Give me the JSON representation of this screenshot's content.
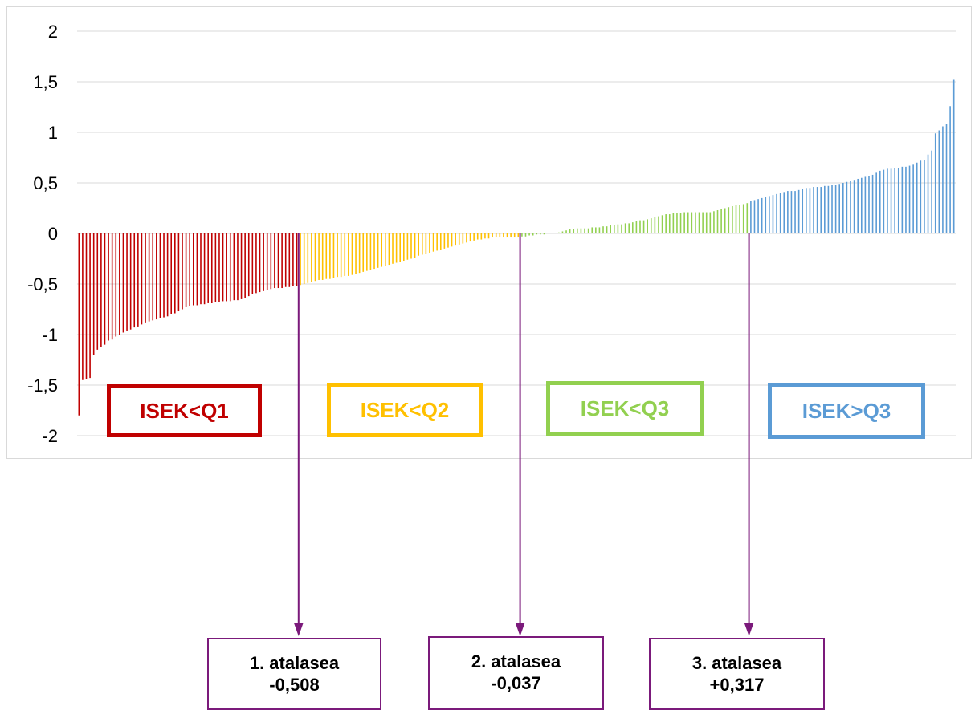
{
  "chart_data": {
    "type": "bar",
    "title": "",
    "xlabel": "",
    "ylabel": "",
    "ylim": [
      -2,
      2
    ],
    "y_ticks": [
      "2",
      "1,5",
      "1",
      "0,5",
      "0",
      "-0,5",
      "-1",
      "-1,5",
      "-2"
    ],
    "grid": "horizontal",
    "legend": "none",
    "series": [
      {
        "group": "ISEK<Q1",
        "color": "#c00000",
        "values": [
          -1.8,
          -1.45,
          -1.44,
          -1.43,
          -1.2,
          -1.15,
          -1.12,
          -1.1,
          -1.06,
          -1.05,
          -1.02,
          -1.0,
          -0.98,
          -0.96,
          -0.95,
          -0.93,
          -0.92,
          -0.9,
          -0.88,
          -0.87,
          -0.86,
          -0.85,
          -0.84,
          -0.83,
          -0.82,
          -0.8,
          -0.79,
          -0.77,
          -0.75,
          -0.73,
          -0.72,
          -0.71,
          -0.71,
          -0.7,
          -0.7,
          -0.69,
          -0.69,
          -0.68,
          -0.68,
          -0.67,
          -0.67,
          -0.67,
          -0.66,
          -0.66,
          -0.65,
          -0.64,
          -0.62,
          -0.6,
          -0.59,
          -0.58,
          -0.57,
          -0.56,
          -0.55,
          -0.54,
          -0.54,
          -0.54,
          -0.53,
          -0.53,
          -0.52,
          -0.52
        ]
      },
      {
        "group": "ISEK<Q2",
        "color": "#ffc000",
        "values": [
          -0.51,
          -0.5,
          -0.49,
          -0.48,
          -0.47,
          -0.46,
          -0.46,
          -0.45,
          -0.45,
          -0.44,
          -0.43,
          -0.43,
          -0.42,
          -0.42,
          -0.41,
          -0.4,
          -0.39,
          -0.38,
          -0.37,
          -0.36,
          -0.35,
          -0.34,
          -0.33,
          -0.32,
          -0.31,
          -0.3,
          -0.29,
          -0.28,
          -0.27,
          -0.26,
          -0.25,
          -0.24,
          -0.22,
          -0.21,
          -0.2,
          -0.19,
          -0.18,
          -0.17,
          -0.16,
          -0.15,
          -0.14,
          -0.13,
          -0.12,
          -0.11,
          -0.1,
          -0.09,
          -0.08,
          -0.07,
          -0.06,
          -0.06,
          -0.05,
          -0.05,
          -0.04,
          -0.04,
          -0.04,
          -0.04,
          -0.04,
          -0.04,
          -0.04,
          -0.04
        ]
      },
      {
        "group": "ISEK<Q3",
        "color": "#92d050",
        "values": [
          -0.03,
          -0.03,
          -0.02,
          -0.02,
          -0.01,
          -0.01,
          -0.01,
          0.0,
          0.0,
          0.0,
          0.01,
          0.02,
          0.03,
          0.04,
          0.04,
          0.05,
          0.05,
          0.05,
          0.05,
          0.06,
          0.06,
          0.06,
          0.07,
          0.07,
          0.08,
          0.08,
          0.09,
          0.09,
          0.1,
          0.1,
          0.11,
          0.12,
          0.13,
          0.13,
          0.14,
          0.15,
          0.16,
          0.17,
          0.18,
          0.19,
          0.19,
          0.2,
          0.2,
          0.2,
          0.21,
          0.21,
          0.21,
          0.21,
          0.21,
          0.21,
          0.21,
          0.21,
          0.22,
          0.23,
          0.24,
          0.25,
          0.26,
          0.27,
          0.28,
          0.28,
          0.29,
          0.3
        ]
      },
      {
        "group": "ISEK>Q3",
        "color": "#5b9bd5",
        "values": [
          0.32,
          0.33,
          0.34,
          0.35,
          0.36,
          0.37,
          0.38,
          0.39,
          0.4,
          0.41,
          0.42,
          0.42,
          0.42,
          0.43,
          0.44,
          0.45,
          0.45,
          0.46,
          0.46,
          0.46,
          0.47,
          0.47,
          0.48,
          0.48,
          0.49,
          0.5,
          0.51,
          0.52,
          0.53,
          0.54,
          0.55,
          0.56,
          0.57,
          0.58,
          0.6,
          0.62,
          0.63,
          0.64,
          0.64,
          0.65,
          0.65,
          0.66,
          0.66,
          0.67,
          0.68,
          0.7,
          0.72,
          0.73,
          0.78,
          0.82,
          0.99,
          1.02,
          1.06,
          1.08,
          1.26,
          1.52
        ]
      }
    ],
    "quartile_labels": [
      {
        "text": "ISEK<Q1",
        "color": "#c00000"
      },
      {
        "text": "ISEK<Q2",
        "color": "#ffc000"
      },
      {
        "text": "ISEK<Q3",
        "color": "#92d050"
      },
      {
        "text": "ISEK>Q3",
        "color": "#5b9bd5"
      }
    ],
    "thresholds": [
      {
        "line1": "1. atalasea",
        "line2": "-0,508"
      },
      {
        "line1": "2. atalasea",
        "line2": "-0,037"
      },
      {
        "line1": "3. atalasea",
        "line2": "+0,317"
      }
    ],
    "arrow_color": "#7b1a7b",
    "grid_color": "#d9d9d9"
  }
}
